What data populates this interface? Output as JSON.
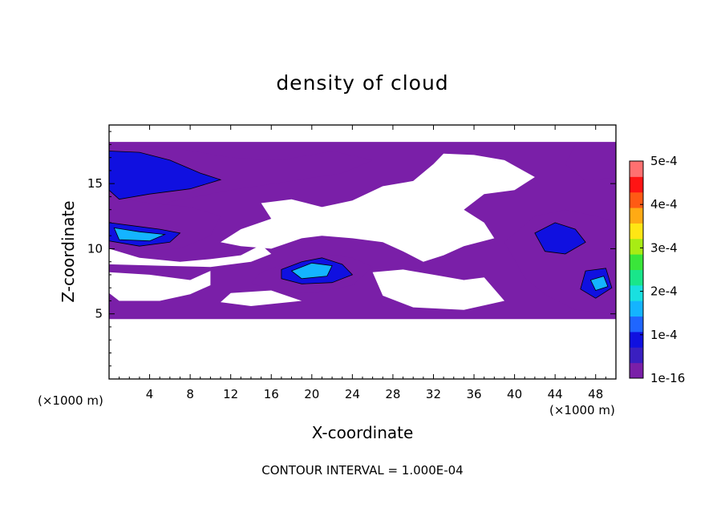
{
  "chart_data": {
    "type": "heatmap",
    "title": "density of cloud",
    "xlabel": "X-coordinate",
    "ylabel": "Z-coordinate",
    "x_unit": "(×1000 m)",
    "y_unit": "(×1000 m)",
    "xlim": [
      0,
      50
    ],
    "ylim": [
      0,
      19.5
    ],
    "x_ticks": [
      4,
      8,
      12,
      16,
      20,
      24,
      28,
      32,
      36,
      40,
      44,
      48
    ],
    "x_tick_labels": [
      "4",
      "8",
      "12",
      "16",
      "20",
      "24",
      "28",
      "32",
      "36",
      "40",
      "44",
      "48"
    ],
    "y_ticks": [
      5,
      10,
      15
    ],
    "y_tick_labels": [
      "5",
      "10",
      "15"
    ],
    "colorbar": {
      "min": 1e-16,
      "max": 0.0005,
      "tick_values": [
        1e-16,
        0.0001,
        0.0002,
        0.0003,
        0.0004,
        0.0005
      ],
      "tick_labels": [
        "1e-16",
        "1e-4",
        "2e-4",
        "3e-4",
        "4e-4",
        "5e-4"
      ],
      "colors": [
        "#7a1fa8",
        "#3a1fc0",
        "#1010e0",
        "#1f66ff",
        "#14b4ff",
        "#19e0e0",
        "#19e68a",
        "#3ae63a",
        "#a8ec14",
        "#ffe614",
        "#ffaa14",
        "#ff5a14",
        "#ff1414",
        "#ff7070"
      ]
    },
    "contour_interval_text": "CONTOUR INTERVAL = 1.000E-04",
    "regions": [
      {
        "level": 1e-16,
        "outline": [
          [
            0,
            18.2
          ],
          [
            50,
            18.2
          ],
          [
            50,
            4.6
          ],
          [
            0,
            4.6
          ]
        ]
      },
      {
        "level": 0,
        "outline": [
          [
            33,
            17.3
          ],
          [
            36,
            17.2
          ],
          [
            39,
            16.8
          ],
          [
            42,
            15.5
          ],
          [
            40,
            14.5
          ],
          [
            37,
            14.2
          ],
          [
            35,
            13.0
          ],
          [
            37,
            12.0
          ],
          [
            38,
            10.8
          ],
          [
            35,
            10.2
          ],
          [
            33,
            9.5
          ],
          [
            31,
            9.0
          ],
          [
            29,
            9.8
          ],
          [
            27,
            10.5
          ],
          [
            24,
            10.8
          ],
          [
            21,
            11.0
          ],
          [
            19,
            10.8
          ],
          [
            16,
            10.0
          ],
          [
            13,
            10.2
          ],
          [
            11,
            10.5
          ],
          [
            13,
            11.5
          ],
          [
            16,
            12.3
          ],
          [
            15,
            13.5
          ],
          [
            18,
            13.8
          ],
          [
            21,
            13.2
          ],
          [
            24,
            13.7
          ],
          [
            27,
            14.8
          ],
          [
            30,
            15.2
          ],
          [
            32,
            16.5
          ]
        ]
      },
      {
        "level": 0,
        "outline": [
          [
            0,
            10.0
          ],
          [
            3,
            9.3
          ],
          [
            7,
            9.0
          ],
          [
            10,
            9.2
          ],
          [
            13,
            9.5
          ],
          [
            15,
            10.3
          ],
          [
            16,
            9.6
          ],
          [
            14,
            9.0
          ],
          [
            10,
            8.6
          ],
          [
            5,
            8.7
          ],
          [
            0,
            8.8
          ]
        ]
      },
      {
        "level": 0,
        "outline": [
          [
            0,
            8.2
          ],
          [
            4,
            8.0
          ],
          [
            8,
            7.6
          ],
          [
            10,
            8.3
          ],
          [
            10,
            7.2
          ],
          [
            8,
            6.5
          ],
          [
            5,
            6.0
          ],
          [
            1,
            6.0
          ],
          [
            0,
            6.6
          ]
        ]
      },
      {
        "level": 0,
        "outline": [
          [
            26,
            8.2
          ],
          [
            29,
            8.4
          ],
          [
            32,
            8.0
          ],
          [
            35,
            7.6
          ],
          [
            37,
            7.8
          ],
          [
            39,
            6.0
          ],
          [
            35,
            5.3
          ],
          [
            30,
            5.5
          ],
          [
            27,
            6.4
          ]
        ]
      },
      {
        "level": 0,
        "outline": [
          [
            12,
            6.6
          ],
          [
            16,
            6.8
          ],
          [
            19,
            6.0
          ],
          [
            14,
            5.6
          ],
          [
            11,
            5.9
          ]
        ]
      },
      {
        "level": 3e-05,
        "outline": [
          [
            0,
            18.0
          ],
          [
            6,
            17.8
          ],
          [
            12,
            17.0
          ],
          [
            17,
            16.8
          ],
          [
            22,
            17.5
          ],
          [
            26,
            16.8
          ],
          [
            23,
            15.8
          ],
          [
            18,
            15.2
          ],
          [
            12,
            14.5
          ],
          [
            6,
            13.6
          ],
          [
            3,
            12.2
          ],
          [
            0,
            12.0
          ]
        ]
      },
      {
        "level": 3e-05,
        "outline": [
          [
            0,
            14.0
          ],
          [
            4,
            13.5
          ],
          [
            8,
            13.2
          ],
          [
            11,
            12.5
          ],
          [
            10,
            11.0
          ],
          [
            7,
            10.0
          ],
          [
            3,
            9.8
          ],
          [
            0,
            10.2
          ]
        ]
      },
      {
        "level": 3e-05,
        "outline": [
          [
            15,
            8.2
          ],
          [
            18,
            9.0
          ],
          [
            21,
            9.6
          ],
          [
            24,
            9.3
          ],
          [
            26,
            8.6
          ],
          [
            24,
            7.2
          ],
          [
            20,
            6.6
          ],
          [
            16,
            6.8
          ],
          [
            14,
            7.4
          ]
        ]
      },
      {
        "level": 3e-05,
        "outline": [
          [
            39,
            10.5
          ],
          [
            42,
            12.5
          ],
          [
            45,
            13.0
          ],
          [
            48,
            12.5
          ],
          [
            50,
            12.0
          ],
          [
            50,
            5.0
          ],
          [
            46,
            5.3
          ],
          [
            43,
            6.5
          ],
          [
            41,
            7.8
          ]
        ]
      },
      {
        "level": 3e-05,
        "outline": [
          [
            46,
            18.0
          ],
          [
            50,
            18.1
          ],
          [
            50,
            15.5
          ],
          [
            47,
            15.2
          ],
          [
            45,
            16.5
          ]
        ]
      },
      {
        "level": 9e-05,
        "outline": [
          [
            0,
            17.5
          ],
          [
            3,
            17.4
          ],
          [
            6,
            16.8
          ],
          [
            9,
            15.8
          ],
          [
            11,
            15.3
          ],
          [
            8,
            14.6
          ],
          [
            4,
            14.2
          ],
          [
            1,
            13.8
          ],
          [
            0,
            14.5
          ]
        ]
      },
      {
        "level": 9e-05,
        "outline": [
          [
            0,
            12.0
          ],
          [
            2,
            11.8
          ],
          [
            5,
            11.5
          ],
          [
            7,
            11.2
          ],
          [
            6,
            10.5
          ],
          [
            3,
            10.2
          ],
          [
            0,
            10.6
          ]
        ]
      },
      {
        "level": 9e-05,
        "outline": [
          [
            17,
            8.4
          ],
          [
            19,
            9.0
          ],
          [
            21,
            9.3
          ],
          [
            23,
            8.8
          ],
          [
            24,
            8.0
          ],
          [
            22,
            7.4
          ],
          [
            19,
            7.3
          ],
          [
            17,
            7.7
          ]
        ]
      },
      {
        "level": 9e-05,
        "outline": [
          [
            42,
            11.2
          ],
          [
            44,
            12.0
          ],
          [
            46,
            11.5
          ],
          [
            47,
            10.5
          ],
          [
            45,
            9.6
          ],
          [
            43,
            9.8
          ]
        ]
      },
      {
        "level": 9e-05,
        "outline": [
          [
            47,
            8.3
          ],
          [
            49,
            8.5
          ],
          [
            49.6,
            7.0
          ],
          [
            48,
            6.2
          ],
          [
            46.5,
            6.9
          ]
        ]
      },
      {
        "level": 0.00016,
        "outline": [
          [
            0.5,
            11.6
          ],
          [
            3,
            11.3
          ],
          [
            5.5,
            11.1
          ],
          [
            4,
            10.6
          ],
          [
            1,
            10.7
          ]
        ]
      },
      {
        "level": 0.00016,
        "outline": [
          [
            18,
            8.3
          ],
          [
            20,
            8.9
          ],
          [
            22,
            8.7
          ],
          [
            21.5,
            7.9
          ],
          [
            19,
            7.7
          ]
        ]
      },
      {
        "level": 0.00016,
        "outline": [
          [
            47.5,
            7.6
          ],
          [
            48.8,
            7.9
          ],
          [
            49.2,
            7.1
          ],
          [
            48,
            6.8
          ]
        ]
      }
    ]
  }
}
